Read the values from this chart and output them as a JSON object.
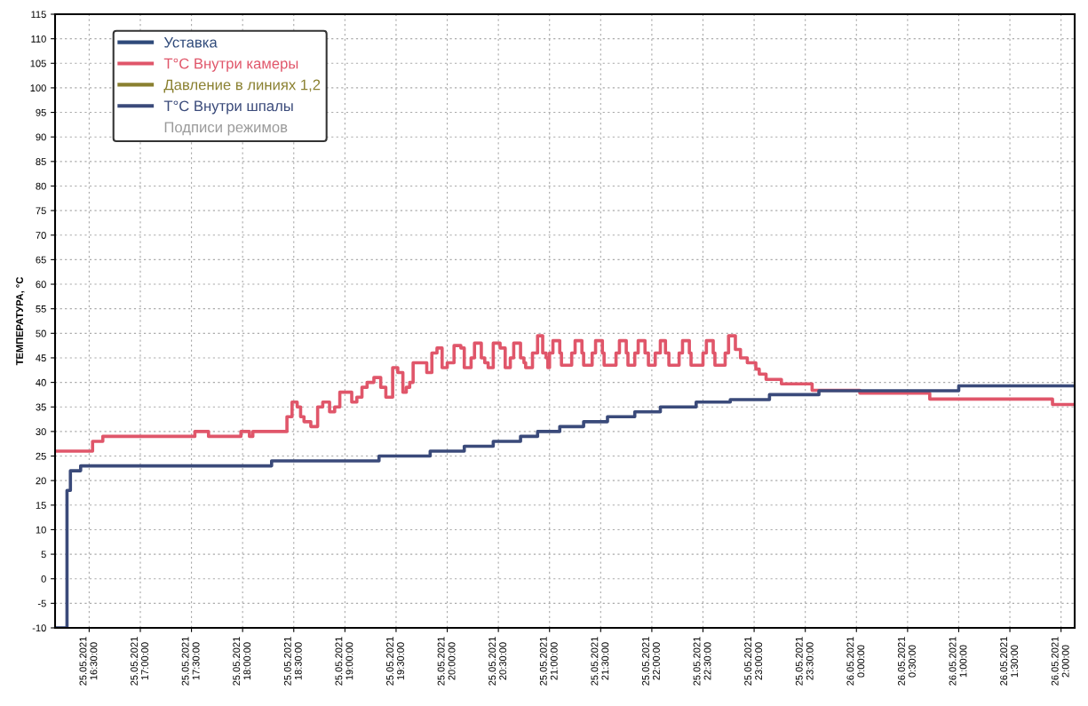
{
  "chart_data": {
    "type": "step",
    "ylabel": "ТЕМПЕРАТУРА, °С",
    "xlim": [
      "2021-05-25T16:10",
      "2021-05-26T02:08"
    ],
    "ylim": [
      -10,
      115
    ],
    "xticks": [
      {
        "value": "2021-05-25T16:30",
        "label": "25.05.2021\n16:30:00"
      },
      {
        "value": "2021-05-25T17:00",
        "label": "25.05.2021\n17:00:00"
      },
      {
        "value": "2021-05-25T17:30",
        "label": "25.05.2021\n17:30:00"
      },
      {
        "value": "2021-05-25T18:00",
        "label": "25.05.2021\n18:00:00"
      },
      {
        "value": "2021-05-25T18:30",
        "label": "25.05.2021\n18:30:00"
      },
      {
        "value": "2021-05-25T19:00",
        "label": "25.05.2021\n19:00:00"
      },
      {
        "value": "2021-05-25T19:30",
        "label": "25.05.2021\n19:30:00"
      },
      {
        "value": "2021-05-25T20:00",
        "label": "25.05.2021\n20:00:00"
      },
      {
        "value": "2021-05-25T20:30",
        "label": "25.05.2021\n20:30:00"
      },
      {
        "value": "2021-05-25T21:00",
        "label": "25.05.2021\n21:00:00"
      },
      {
        "value": "2021-05-25T21:30",
        "label": "25.05.2021\n21:30:00"
      },
      {
        "value": "2021-05-25T22:00",
        "label": "25.05.2021\n22:00:00"
      },
      {
        "value": "2021-05-25T22:30",
        "label": "25.05.2021\n22:30:00"
      },
      {
        "value": "2021-05-25T23:00",
        "label": "25.05.2021\n23:00:00"
      },
      {
        "value": "2021-05-25T23:30",
        "label": "25.05.2021\n23:30:00"
      },
      {
        "value": "2021-05-26T00:00",
        "label": "26.05.2021\n0:00:00"
      },
      {
        "value": "2021-05-26T00:30",
        "label": "26.05.2021\n0:30:00"
      },
      {
        "value": "2021-05-26T01:00",
        "label": "26.05.2021\n1:00:00"
      },
      {
        "value": "2021-05-26T01:30",
        "label": "26.05.2021\n1:30:00"
      },
      {
        "value": "2021-05-26T02:00",
        "label": "26.05.2021\n2:00:00"
      }
    ],
    "yticks": [
      -10,
      -5,
      0,
      5,
      10,
      15,
      20,
      25,
      30,
      35,
      40,
      45,
      50,
      55,
      60,
      65,
      70,
      75,
      80,
      85,
      90,
      95,
      100,
      105,
      110,
      115
    ],
    "grid": true,
    "legend": "top left",
    "series": [
      {
        "name": "Уставка",
        "color": "#2f4a7a"
      },
      {
        "name": "T°C Внутри камеры",
        "color": "#e0566a",
        "x": [
          "2021-05-25T16:10",
          "2021-05-25T16:32",
          "2021-05-25T16:38",
          "2021-05-25T17:32",
          "2021-05-25T17:40",
          "2021-05-25T17:59",
          "2021-05-25T18:04",
          "2021-05-25T18:06",
          "2021-05-25T18:26",
          "2021-05-25T18:29",
          "2021-05-25T18:32",
          "2021-05-25T18:34",
          "2021-05-25T18:36",
          "2021-05-25T18:40",
          "2021-05-25T18:44",
          "2021-05-25T18:47",
          "2021-05-25T18:51",
          "2021-05-25T18:54",
          "2021-05-25T18:57",
          "2021-05-25T19:04",
          "2021-05-25T19:07",
          "2021-05-25T19:10",
          "2021-05-25T19:13",
          "2021-05-25T19:17",
          "2021-05-25T19:21",
          "2021-05-25T19:24",
          "2021-05-25T19:28",
          "2021-05-25T19:31",
          "2021-05-25T19:34",
          "2021-05-25T19:36",
          "2021-05-25T19:38",
          "2021-05-25T19:40",
          "2021-05-25T19:48",
          "2021-05-25T19:51",
          "2021-05-25T19:54",
          "2021-05-25T19:57",
          "2021-05-25T20:00",
          "2021-05-25T20:04",
          "2021-05-25T20:08",
          "2021-05-25T20:10",
          "2021-05-25T20:14",
          "2021-05-25T20:16",
          "2021-05-25T20:20",
          "2021-05-25T20:22",
          "2021-05-25T20:24",
          "2021-05-25T20:27",
          "2021-05-25T20:31",
          "2021-05-25T20:34",
          "2021-05-25T20:37",
          "2021-05-25T20:39",
          "2021-05-25T20:43",
          "2021-05-25T20:45",
          "2021-05-25T20:46",
          "2021-05-25T20:50",
          "2021-05-25T20:53",
          "2021-05-25T20:56",
          "2021-05-25T20:58",
          "2021-05-25T20:59",
          "2021-05-25T21:00",
          "2021-05-25T21:02",
          "2021-05-25T21:06",
          "2021-05-25T21:07",
          "2021-05-25T21:13",
          "2021-05-25T21:15",
          "2021-05-25T21:19",
          "2021-05-25T21:20",
          "2021-05-25T21:25",
          "2021-05-25T21:27",
          "2021-05-25T21:31",
          "2021-05-25T21:32",
          "2021-05-25T21:39",
          "2021-05-25T21:41",
          "2021-05-25T21:45",
          "2021-05-25T21:46",
          "2021-05-25T21:50",
          "2021-05-25T21:52",
          "2021-05-25T21:56",
          "2021-05-25T21:58",
          "2021-05-25T22:02",
          "2021-05-25T22:05",
          "2021-05-25T22:08",
          "2021-05-25T22:10",
          "2021-05-25T22:16",
          "2021-05-25T22:18",
          "2021-05-25T22:22",
          "2021-05-25T22:23",
          "2021-05-25T22:30",
          "2021-05-25T22:32",
          "2021-05-25T22:36",
          "2021-05-25T22:37",
          "2021-05-25T22:43",
          "2021-05-25T22:45",
          "2021-05-25T22:49",
          "2021-05-25T22:52",
          "2021-05-25T22:56",
          "2021-05-25T23:01",
          "2021-05-25T23:03",
          "2021-05-25T23:07",
          "2021-05-25T23:16",
          "2021-05-25T23:34",
          "2021-05-26T00:02",
          "2021-05-26T00:43",
          "2021-05-26T01:55",
          "2021-05-26T02:08"
        ],
        "values": [
          26,
          28,
          29,
          30,
          29,
          30,
          29,
          30,
          33,
          36,
          35,
          33,
          32,
          31,
          35,
          36,
          34,
          35,
          38,
          36,
          37,
          39,
          40,
          41,
          39,
          37,
          43,
          42,
          38,
          39,
          40,
          44,
          42,
          46,
          47,
          43,
          44,
          47.5,
          47,
          43,
          45,
          48,
          45,
          44,
          43,
          48,
          47,
          43,
          45,
          48,
          45,
          44,
          43,
          46,
          49.5,
          46,
          45,
          43,
          46,
          48.5,
          46,
          43.5,
          46,
          48.5,
          46,
          43.5,
          46,
          48.5,
          46,
          43.5,
          46,
          48.5,
          46,
          43.5,
          46,
          48.5,
          46,
          43.5,
          46,
          48.5,
          46,
          43.5,
          46,
          48.5,
          46,
          43.5,
          46,
          48.5,
          46,
          43.5,
          46,
          49.5,
          46.7,
          45,
          44,
          42.7,
          41.7,
          40.6,
          39.7,
          38.4,
          37.8,
          36.6,
          35.5,
          35.5
        ]
      },
      {
        "name": "Давление в линиях 1,2",
        "color": "#8a8030"
      },
      {
        "name": "T°C Внутри шпалы",
        "color": "#3a4a7a",
        "x": [
          "2021-05-25T16:10",
          "2021-05-25T16:17",
          "2021-05-25T16:19",
          "2021-05-25T16:25",
          "2021-05-25T18:17",
          "2021-05-25T19:20",
          "2021-05-25T19:50",
          "2021-05-25T20:10",
          "2021-05-25T20:27",
          "2021-05-25T20:43",
          "2021-05-25T20:53",
          "2021-05-25T21:06",
          "2021-05-25T21:20",
          "2021-05-25T21:34",
          "2021-05-25T21:50",
          "2021-05-25T22:05",
          "2021-05-25T22:26",
          "2021-05-25T22:46",
          "2021-05-25T23:09",
          "2021-05-25T23:38",
          "2021-05-26T01:00",
          "2021-05-26T02:08"
        ],
        "values": [
          -10,
          18,
          22,
          23,
          24,
          25,
          26,
          27,
          28,
          29,
          30,
          31,
          32,
          33,
          34,
          35,
          36,
          36.5,
          37.5,
          38.3,
          39.3,
          39.3
        ]
      },
      {
        "name": "Подписи режимов",
        "color": "#9a9a9a",
        "line_style": "none"
      }
    ]
  }
}
